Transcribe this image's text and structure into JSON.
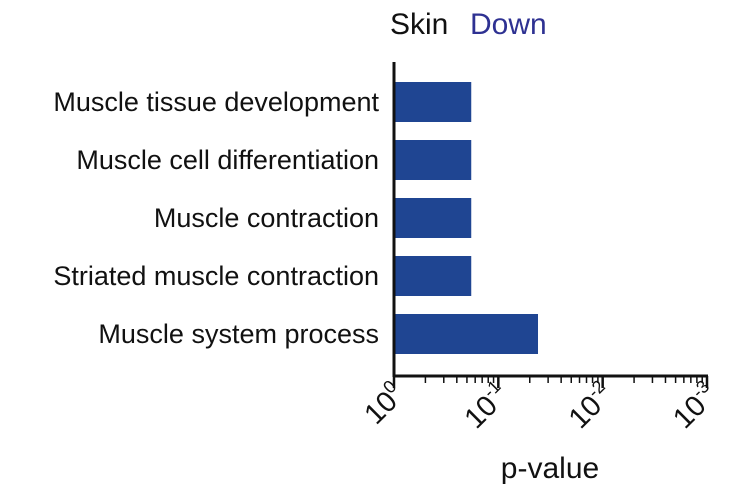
{
  "chart_data": {
    "type": "bar",
    "orientation": "horizontal",
    "title": "Skin",
    "subtitle": "Down",
    "colors": {
      "bar": "#1f4592",
      "subtitle": "#2e3192",
      "axis": "#111111"
    },
    "categories": [
      "Muscle tissue development",
      "Muscle cell differentiation",
      "Muscle contraction",
      "Striated muscle contraction",
      "Muscle system process"
    ],
    "values": [
      5.5,
      5.5,
      5.5,
      5.5,
      24
    ],
    "xlabel": "p-value",
    "ylabel": "",
    "xscale": "log",
    "xlim": [
      1,
      1000
    ],
    "xticks": [
      {
        "value": 1,
        "base": "10",
        "exp": "0"
      },
      {
        "value": 10,
        "base": "10",
        "exp": "-1"
      },
      {
        "value": 100,
        "base": "10",
        "exp": "-2"
      },
      {
        "value": 1000,
        "base": "10",
        "exp": "-3"
      }
    ],
    "grid": false,
    "legend": "none"
  }
}
